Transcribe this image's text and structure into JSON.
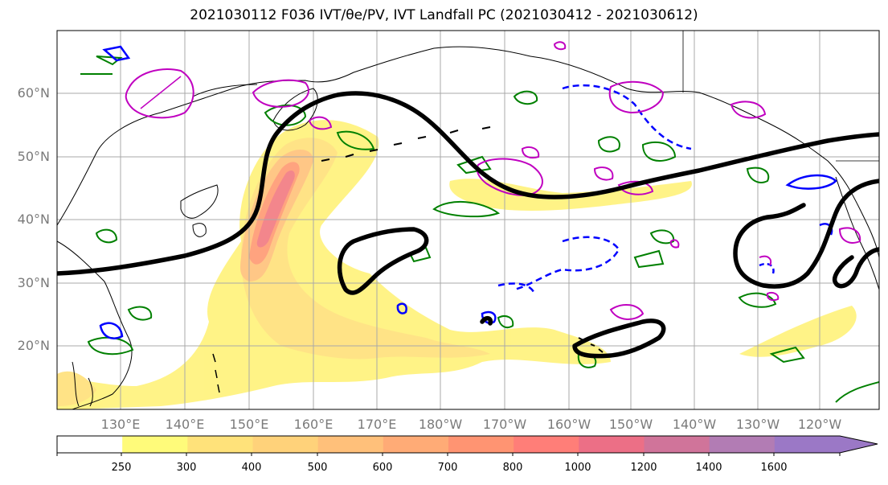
{
  "title": "2021030112 F036 IVT/θe/PV, IVT Landfall PC (2021030412 - 2021030612)",
  "map": {
    "lat_labels": [
      "60°N",
      "50°N",
      "40°N",
      "30°N",
      "20°N"
    ],
    "lon_labels": [
      "130°E",
      "140°E",
      "150°E",
      "160°E",
      "170°E",
      "180°W",
      "170°W",
      "160°W",
      "150°W",
      "140°W",
      "130°W",
      "120°W"
    ],
    "gridlines": true,
    "fill_field": "IVT",
    "contour_colors": {
      "ivt_landfall_pc": "#000000",
      "theta_e_positive": "#008000",
      "theta_e_negative": "#0000ff",
      "pv": "#c000c0"
    }
  },
  "colorbar": {
    "ticks": [
      "250",
      "300",
      "400",
      "500",
      "600",
      "700",
      "800",
      "1000",
      "1200",
      "1400",
      "1600"
    ],
    "extend": "max",
    "colors": [
      "#ffffff",
      "#fffb7a",
      "#ffe27a",
      "#ffd27a",
      "#ffc07a",
      "#ffab76",
      "#ff9472",
      "#ff7e78",
      "#ec6f86",
      "#d0749a",
      "#b27cb4",
      "#9b78c6"
    ]
  }
}
